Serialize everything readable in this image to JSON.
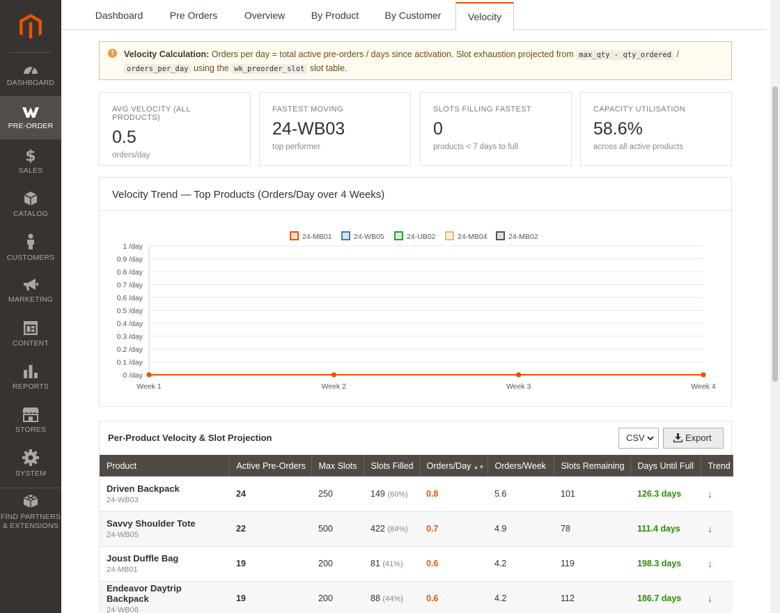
{
  "sidebar": {
    "items": [
      {
        "label": "DASHBOARD",
        "icon": "dashboard-icon"
      },
      {
        "label": "PRE-ORDER",
        "icon": "webkul-w-icon",
        "active": true
      },
      {
        "label": "SALES",
        "icon": "dollar-icon"
      },
      {
        "label": "CATALOG",
        "icon": "box-icon"
      },
      {
        "label": "CUSTOMERS",
        "icon": "person-icon"
      },
      {
        "label": "MARKETING",
        "icon": "megaphone-icon"
      },
      {
        "label": "CONTENT",
        "icon": "layout-icon"
      },
      {
        "label": "REPORTS",
        "icon": "bar-chart-icon"
      },
      {
        "label": "STORES",
        "icon": "storefront-icon"
      },
      {
        "label": "SYSTEM",
        "icon": "gear-icon"
      },
      {
        "label": "FIND PARTNERS & EXTENSIONS",
        "icon": "blocks-icon"
      }
    ]
  },
  "tabs": [
    "Dashboard",
    "Pre Orders",
    "Overview",
    "By Product",
    "By Customer",
    "Velocity"
  ],
  "active_tab": "Velocity",
  "notice": {
    "lead": "Velocity Calculation:",
    "text1": "Orders per day = total active pre-orders / days since activation. Slot exhaustion projected from",
    "code1": "max_qty - qty_ordered",
    "slash": "/",
    "code2": "orders_per_day",
    "text2": "using the",
    "code3": "wk_preorder_slot",
    "text3": "slot table."
  },
  "stats": [
    {
      "label": "AVG VELOCITY (ALL PRODUCTS)",
      "value": "0.5",
      "sub": "orders/day"
    },
    {
      "label": "FASTEST MOVING",
      "value": "24-WB03",
      "sub": "top performer"
    },
    {
      "label": "SLOTS FILLING FASTEST",
      "value": "0",
      "sub": "products < 7 days to full"
    },
    {
      "label": "CAPACITY UTILISATION",
      "value": "58.6%",
      "sub": "across all active products"
    }
  ],
  "chart": {
    "header": "Velocity Trend — Top Products (Orders/Day over 4 Weeks)"
  },
  "chart_data": {
    "type": "line",
    "title": "Velocity Trend — Top Products (Orders/Day over 4 Weeks)",
    "categories": [
      "Week 1",
      "Week 2",
      "Week 3",
      "Week 4"
    ],
    "y_ticks": [
      "0 /day",
      "0.1 /day",
      "0.2 /day",
      "0.3 /day",
      "0.4 /day",
      "0.5 /day",
      "0.6 /day",
      "0.7 /day",
      "0.8 /day",
      "0.9 /day",
      "1 /day"
    ],
    "ylim": [
      0,
      1
    ],
    "legend_position": "top",
    "grid": true,
    "series": [
      {
        "name": "24-MB01",
        "color": "#eb5202",
        "values": [
          0,
          0,
          0,
          0
        ]
      },
      {
        "name": "24-WB05",
        "color": "#3b80c4",
        "values": [
          0,
          0,
          0,
          0
        ]
      },
      {
        "name": "24-UB02",
        "color": "#2e9e2e",
        "values": [
          0,
          0,
          0,
          0
        ]
      },
      {
        "name": "24-MB04",
        "color": "#f0b860",
        "values": [
          0,
          0,
          0,
          0
        ]
      },
      {
        "name": "24-MB02",
        "color": "#555555",
        "values": [
          0,
          0,
          0,
          0
        ]
      }
    ]
  },
  "table": {
    "title": "Per-Product Velocity & Slot Projection",
    "format_select": "CSV",
    "export_label": "Export",
    "columns": [
      "Product",
      "Active Pre-Orders",
      "Max Slots",
      "Slots Filled",
      "Orders/Day",
      "Orders/Week",
      "Slots Remaining",
      "Days Until Full",
      "Trend"
    ],
    "rows": [
      {
        "name": "Driven Backpack",
        "sku": "24-WB03",
        "active": "24",
        "max": "250",
        "filled": "149",
        "pct": "(60%)",
        "opd": "0.8",
        "opw": "5.6",
        "remaining": "101",
        "days": "126.3 days",
        "trend": "↓"
      },
      {
        "name": "Savvy Shoulder Tote",
        "sku": "24-WB05",
        "active": "22",
        "max": "500",
        "filled": "422",
        "pct": "(84%)",
        "opd": "0.7",
        "opw": "4.9",
        "remaining": "78",
        "days": "111.4 days",
        "trend": "↓"
      },
      {
        "name": "Joust Duffle Bag",
        "sku": "24-MB01",
        "active": "19",
        "max": "200",
        "filled": "81",
        "pct": "(41%)",
        "opd": "0.6",
        "opw": "4.2",
        "remaining": "119",
        "days": "198.3 days",
        "trend": "↓"
      },
      {
        "name": "Endeavor Daytrip Backpack",
        "sku": "24-WB06",
        "active": "19",
        "max": "200",
        "filled": "88",
        "pct": "(44%)",
        "opd": "0.6",
        "opw": "4.2",
        "remaining": "112",
        "days": "186.7 days",
        "trend": "↓"
      }
    ]
  }
}
